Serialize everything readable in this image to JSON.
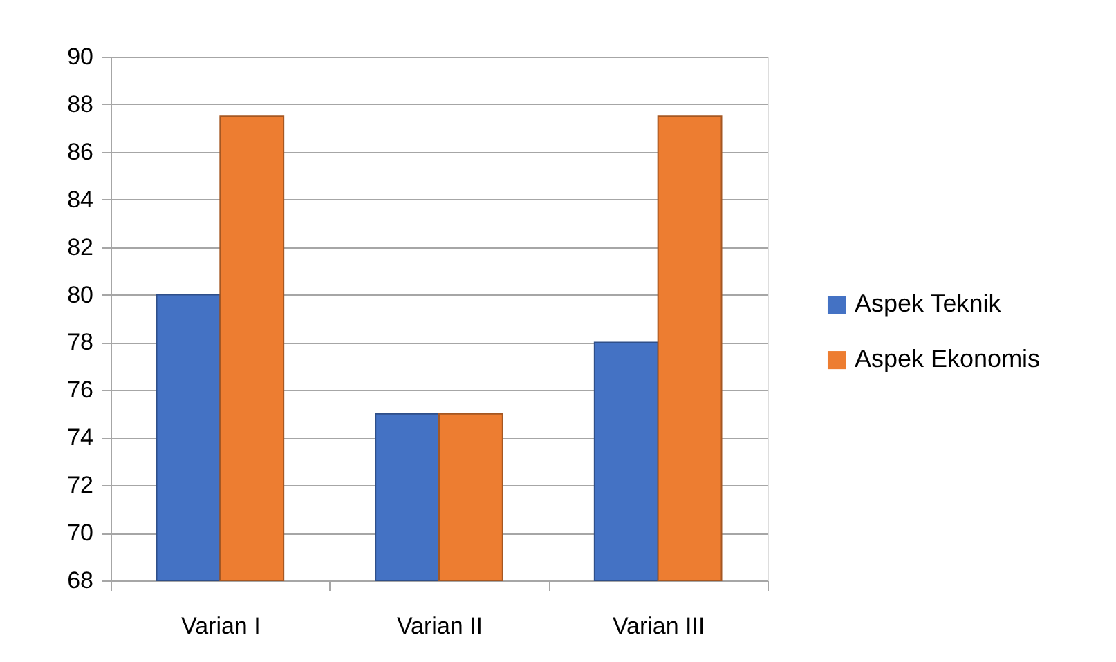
{
  "chart_data": {
    "type": "bar",
    "categories": [
      "Varian I",
      "Varian II",
      "Varian III"
    ],
    "series": [
      {
        "name": "Aspek Teknik",
        "color": "#4472c4",
        "values": [
          80,
          75,
          78
        ]
      },
      {
        "name": "Aspek Ekonomis",
        "color": "#ed7d31",
        "values": [
          87.5,
          75,
          87.5
        ]
      }
    ],
    "ylim": [
      68,
      90
    ],
    "yticks": [
      68,
      70,
      72,
      74,
      76,
      78,
      80,
      82,
      84,
      86,
      88,
      90
    ],
    "grid": "y",
    "legend": "right"
  }
}
